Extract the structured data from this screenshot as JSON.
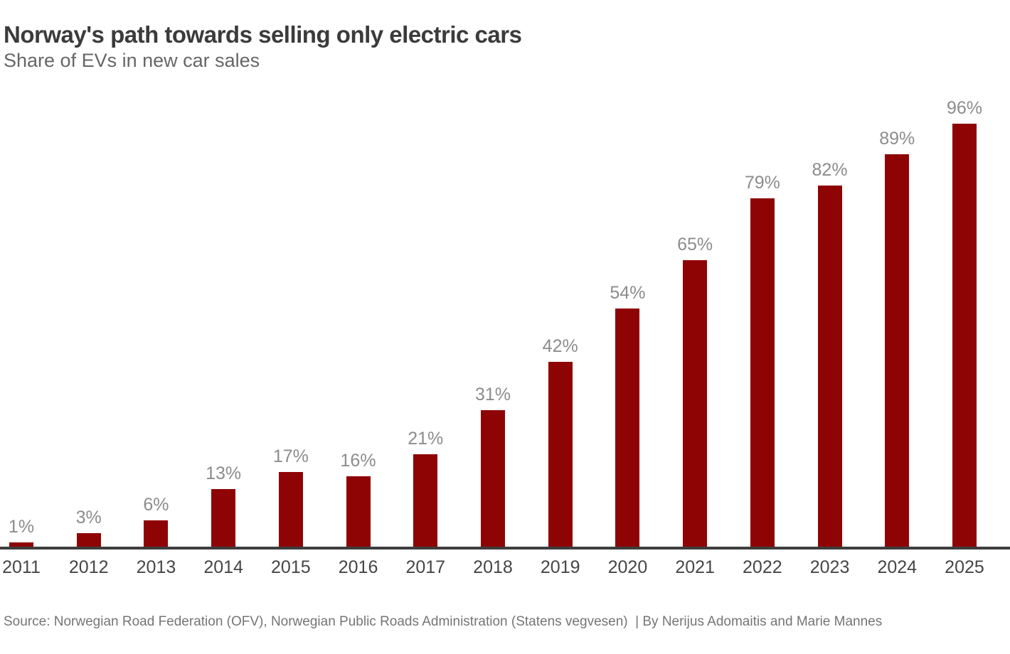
{
  "header": {
    "title": "Norway's path towards selling only electric cars",
    "subtitle": "Share of EVs in new car sales"
  },
  "chart_data": {
    "type": "bar",
    "title": "Norway's path towards selling only electric cars",
    "subtitle": "Share of EVs in new car sales",
    "categories": [
      "2011",
      "2012",
      "2013",
      "2014",
      "2015",
      "2016",
      "2017",
      "2018",
      "2019",
      "2020",
      "2021",
      "2022",
      "2023",
      "2024",
      "2025"
    ],
    "values": [
      1,
      3,
      6,
      13,
      17,
      16,
      21,
      31,
      42,
      54,
      65,
      79,
      82,
      89,
      96
    ],
    "value_labels": [
      "1%",
      "3%",
      "6%",
      "13%",
      "17%",
      "16%",
      "21%",
      "31%",
      "42%",
      "54%",
      "65%",
      "79%",
      "82%",
      "89%",
      "96%"
    ],
    "xlabel": "",
    "ylabel": "",
    "ylim": [
      0,
      100
    ],
    "grid": false,
    "legend": null,
    "colors": {
      "bar": "#8e0404",
      "value_label": "#8c8c8c",
      "axis_line": "#3d3d3d",
      "tick_label": "#464646",
      "title": "#3b3b3b",
      "subtitle": "#666666",
      "source": "#757575"
    }
  },
  "footer": {
    "source": "Source: Norwegian Road Federation (OFV), Norwegian Public Roads Administration (Statens vegvesen)  | By Nerijus Adomaitis and Marie Mannes"
  }
}
